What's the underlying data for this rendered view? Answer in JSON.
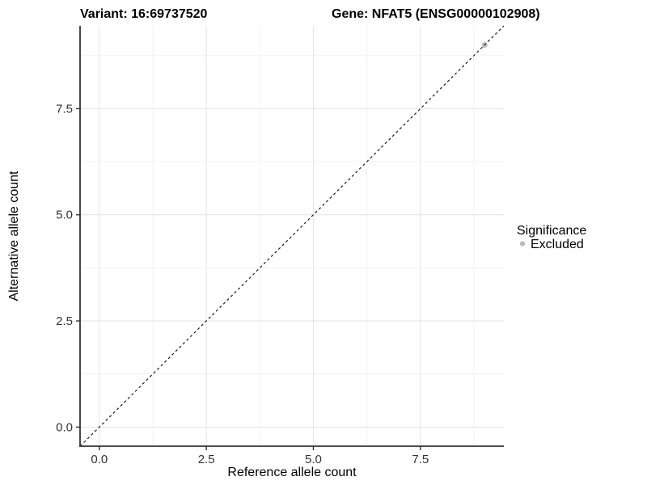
{
  "chart_data": {
    "type": "scatter",
    "titles": {
      "variant": "Variant: 16:69737520",
      "gene": "Gene: NFAT5 (ENSG00000102908)"
    },
    "xlabel": "Reference allele count",
    "ylabel": "Alternative allele count",
    "xlim": [
      -0.45,
      9.45
    ],
    "ylim": [
      -0.45,
      9.45
    ],
    "x_ticks": [
      0.0,
      2.5,
      5.0,
      7.5
    ],
    "x_tick_labels": [
      "0.0",
      "2.5",
      "5.0",
      "7.5"
    ],
    "y_ticks": [
      0.0,
      2.5,
      5.0,
      7.5
    ],
    "y_tick_labels": [
      "0.0",
      "2.5",
      "5.0",
      "7.5"
    ],
    "minor_ticks": [
      1.25,
      3.75,
      6.25,
      8.75
    ],
    "grid": true,
    "reference_line": {
      "type": "identity",
      "slope": 1,
      "intercept": 0,
      "style": "dashed",
      "color": "#1a1a1a"
    },
    "series": [
      {
        "name": "Excluded",
        "color": "#bdbdbd",
        "marker": "circle",
        "points": [
          [
            9,
            9
          ]
        ]
      }
    ],
    "legend": {
      "title": "Significance",
      "position": "right",
      "entries": [
        {
          "label": "Excluded",
          "color": "#bdbdbd",
          "marker": "circle"
        }
      ]
    },
    "panel_background": "#ffffff",
    "grid_major_color": "#e6e6e6",
    "grid_minor_color": "#f0f0f0",
    "axis_line_color": "#333333"
  }
}
